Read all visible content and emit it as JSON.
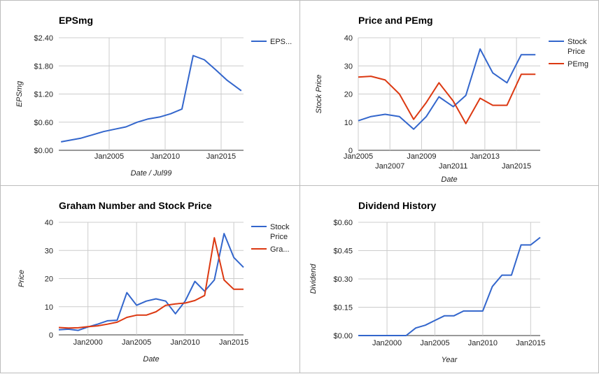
{
  "chart_data": [
    {
      "type": "line",
      "title": "EPSmg",
      "xlabel": "Date / Jul99",
      "ylabel": "EPSmg",
      "ylim": [
        0,
        2.4
      ],
      "xlim": [
        2000.5,
        2017.0
      ],
      "y_ticks": [
        "$0.00",
        "$0.60",
        "$1.20",
        "$1.80",
        "$2.40"
      ],
      "y_tick_values": [
        0,
        0.6,
        1.2,
        1.8,
        2.4
      ],
      "x_ticks": [
        "Jan2005",
        "Jan2010",
        "Jan2015"
      ],
      "x_tick_values": [
        2005,
        2010,
        2015
      ],
      "legend_position": "right",
      "series": [
        {
          "name": "EPS...",
          "color": "#3366cc",
          "x": [
            2000.7,
            2002.5,
            2003.5,
            2004.5,
            2005.5,
            2006.5,
            2007.5,
            2008.5,
            2009.5,
            2010.5,
            2011.5,
            2012.5,
            2013.5,
            2014.5,
            2015.5,
            2016.8
          ],
          "values": [
            0.18,
            0.26,
            0.33,
            0.4,
            0.45,
            0.5,
            0.6,
            0.67,
            0.71,
            0.78,
            0.88,
            2.02,
            1.93,
            1.72,
            1.5,
            1.27
          ]
        }
      ]
    },
    {
      "type": "line",
      "title": "Price and PEmg",
      "xlabel": "Date",
      "ylabel": "Stock Price",
      "ylim": [
        0,
        40
      ],
      "xlim": [
        2005.0,
        2016.5
      ],
      "y_ticks": [
        "0",
        "10",
        "20",
        "30",
        "40"
      ],
      "y_tick_values": [
        0,
        10,
        20,
        30,
        40
      ],
      "x_ticks": [
        "Jan2005",
        "Jan2007",
        "Jan2009",
        "Jan2011",
        "Jan2013",
        "Jan2015"
      ],
      "x_tick_values": [
        2005,
        2007,
        2009,
        2011,
        2013,
        2015
      ],
      "legend_position": "right",
      "series": [
        {
          "name": "Stock Price",
          "name_lines": [
            "Stock",
            "Price"
          ],
          "color": "#3366cc",
          "x": [
            2005.0,
            2005.8,
            2006.7,
            2007.6,
            2008.5,
            2009.3,
            2010.1,
            2011.0,
            2011.8,
            2012.7,
            2013.5,
            2014.4,
            2015.3,
            2016.2
          ],
          "values": [
            10.5,
            12.0,
            12.8,
            12.0,
            7.5,
            12.0,
            19.0,
            15.5,
            19.5,
            36.0,
            27.5,
            24.0,
            34.0,
            34.0
          ]
        },
        {
          "name": "PEmg",
          "color": "#dc3912",
          "x": [
            2005.0,
            2005.8,
            2006.7,
            2007.6,
            2008.5,
            2009.3,
            2010.1,
            2011.0,
            2011.8,
            2012.7,
            2013.5,
            2014.4,
            2015.3,
            2016.2
          ],
          "values": [
            26.0,
            26.3,
            25.0,
            20.0,
            11.0,
            17.0,
            24.0,
            17.5,
            9.5,
            18.5,
            16.0,
            16.0,
            27.0,
            27.0
          ]
        }
      ]
    },
    {
      "type": "line",
      "title": "Graham Number and Stock Price",
      "xlabel": "Date",
      "ylabel": "Price",
      "ylim": [
        0,
        40
      ],
      "xlim": [
        1997.0,
        2016.0
      ],
      "y_ticks": [
        "0",
        "10",
        "20",
        "30",
        "40"
      ],
      "y_tick_values": [
        0,
        10,
        20,
        30,
        40
      ],
      "x_ticks": [
        "Jan2000",
        "Jan2005",
        "Jan2010",
        "Jan2015"
      ],
      "x_tick_values": [
        2000,
        2005,
        2010,
        2015
      ],
      "legend_position": "right",
      "series": [
        {
          "name": "Stock Price",
          "name_lines": [
            "Stock",
            "Price"
          ],
          "color": "#3366cc",
          "x": [
            1997.0,
            1998.0,
            1999.0,
            2000.0,
            2001.0,
            2002.0,
            2003.0,
            2004.0,
            2005.0,
            2006.0,
            2007.0,
            2008.0,
            2009.0,
            2010.0,
            2011.0,
            2012.0,
            2013.0,
            2014.0,
            2015.0,
            2016.0
          ],
          "values": [
            1.8,
            2.0,
            1.6,
            2.8,
            3.8,
            5.0,
            5.2,
            15.0,
            10.5,
            12.0,
            12.8,
            12.0,
            7.5,
            12.0,
            19.0,
            15.5,
            19.5,
            36.0,
            27.5,
            24.0
          ]
        },
        {
          "name": "Gra...",
          "color": "#dc3912",
          "x": [
            1997.0,
            1998.0,
            1999.0,
            2000.0,
            2001.0,
            2002.0,
            2003.0,
            2004.0,
            2005.0,
            2006.0,
            2007.0,
            2008.0,
            2009.0,
            2010.0,
            2011.0,
            2012.0,
            2013.0,
            2014.0,
            2015.0,
            2016.0
          ],
          "values": [
            2.6,
            2.4,
            2.5,
            2.9,
            3.2,
            3.8,
            4.5,
            6.2,
            7.0,
            7.0,
            8.2,
            10.5,
            11.0,
            11.3,
            12.2,
            14.0,
            34.5,
            19.5,
            16.2,
            16.2
          ]
        }
      ]
    },
    {
      "type": "line",
      "title": "Dividend History",
      "xlabel": "Year",
      "ylabel": "Dividend",
      "ylim": [
        0,
        0.6
      ],
      "xlim": [
        1997.0,
        2016.0
      ],
      "y_ticks": [
        "$0.00",
        "$0.15",
        "$0.30",
        "$0.45",
        "$0.60"
      ],
      "y_tick_values": [
        0,
        0.15,
        0.3,
        0.45,
        0.6
      ],
      "x_ticks": [
        "Jan2000",
        "Jan2005",
        "Jan2010",
        "Jan2015"
      ],
      "x_tick_values": [
        2000,
        2005,
        2010,
        2015
      ],
      "legend_position": "none",
      "series": [
        {
          "name": "",
          "color": "#3366cc",
          "x": [
            1997.0,
            1998.0,
            1999.0,
            2000.0,
            2001.0,
            2002.0,
            2003.0,
            2004.0,
            2005.0,
            2006.0,
            2007.0,
            2008.0,
            2009.0,
            2010.0,
            2011.0,
            2012.0,
            2013.0,
            2014.0,
            2015.0,
            2016.0
          ],
          "values": [
            0.0,
            0.0,
            0.0,
            0.0,
            0.0,
            0.0,
            0.04,
            0.055,
            0.08,
            0.105,
            0.105,
            0.13,
            0.13,
            0.13,
            0.26,
            0.32,
            0.32,
            0.48,
            0.48,
            0.52
          ]
        }
      ]
    }
  ]
}
